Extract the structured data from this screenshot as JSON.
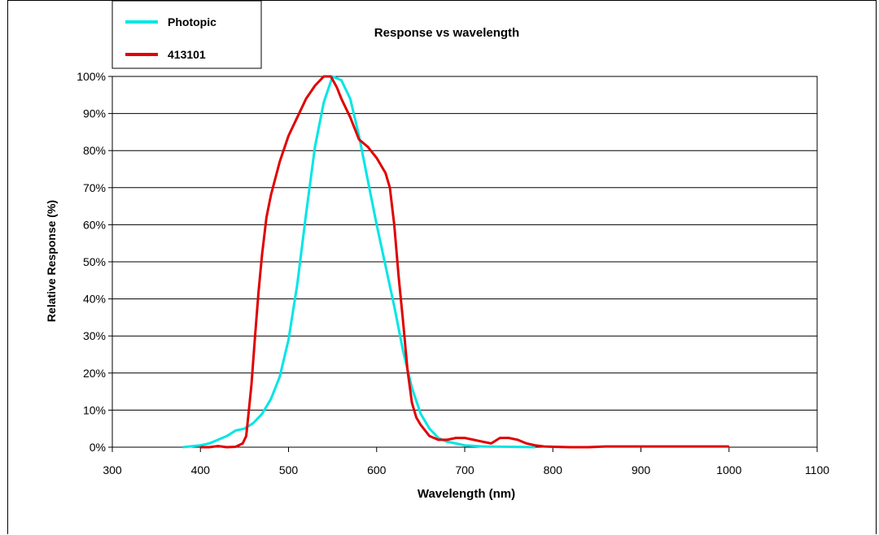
{
  "chart_data": {
    "type": "line",
    "title": "Response vs wavelength",
    "xlabel": "Wavelength (nm)",
    "ylabel": "Relative Response (%)",
    "xlim": [
      300,
      1100
    ],
    "ylim": [
      0,
      100
    ],
    "x_ticks": [
      300,
      400,
      500,
      600,
      700,
      800,
      900,
      1000,
      1100
    ],
    "y_ticks": [
      0,
      10,
      20,
      30,
      40,
      50,
      60,
      70,
      80,
      90,
      100
    ],
    "x_tick_labels": [
      "300",
      "400",
      "500",
      "600",
      "700",
      "800",
      "900",
      "1000",
      "1100"
    ],
    "y_tick_labels": [
      "0%",
      "10%",
      "20%",
      "30%",
      "40%",
      "50%",
      "60%",
      "70%",
      "80%",
      "90%",
      "100%"
    ],
    "grid": "horizontal",
    "legend_position": "top-left",
    "series": [
      {
        "name": "Photopic",
        "color": "#00e5e5",
        "points": [
          [
            380,
            0
          ],
          [
            400,
            0.5
          ],
          [
            410,
            1
          ],
          [
            420,
            2
          ],
          [
            430,
            3
          ],
          [
            440,
            4.5
          ],
          [
            450,
            5
          ],
          [
            460,
            6.5
          ],
          [
            470,
            9
          ],
          [
            480,
            13
          ],
          [
            490,
            19
          ],
          [
            500,
            29
          ],
          [
            510,
            44
          ],
          [
            520,
            63
          ],
          [
            530,
            81
          ],
          [
            540,
            93
          ],
          [
            550,
            100
          ],
          [
            560,
            99
          ],
          [
            570,
            94
          ],
          [
            580,
            84
          ],
          [
            590,
            72
          ],
          [
            600,
            60
          ],
          [
            610,
            49
          ],
          [
            620,
            38
          ],
          [
            630,
            26
          ],
          [
            640,
            16
          ],
          [
            650,
            9
          ],
          [
            660,
            5
          ],
          [
            670,
            2.5
          ],
          [
            680,
            1.5
          ],
          [
            690,
            1
          ],
          [
            700,
            0.5
          ],
          [
            720,
            0.2
          ],
          [
            750,
            0.1
          ],
          [
            780,
            0
          ]
        ]
      },
      {
        "name": "413101",
        "color": "#e00000",
        "points": [
          [
            400,
            0
          ],
          [
            410,
            0
          ],
          [
            420,
            0.3
          ],
          [
            430,
            0
          ],
          [
            440,
            0.1
          ],
          [
            448,
            1
          ],
          [
            452,
            3
          ],
          [
            455,
            10
          ],
          [
            458,
            17
          ],
          [
            462,
            30
          ],
          [
            466,
            42
          ],
          [
            470,
            52
          ],
          [
            475,
            62
          ],
          [
            480,
            68
          ],
          [
            490,
            77
          ],
          [
            500,
            84
          ],
          [
            510,
            89
          ],
          [
            520,
            94
          ],
          [
            530,
            97.5
          ],
          [
            540,
            100
          ],
          [
            548,
            100
          ],
          [
            555,
            97
          ],
          [
            560,
            94
          ],
          [
            570,
            89
          ],
          [
            580,
            83
          ],
          [
            590,
            81
          ],
          [
            600,
            78
          ],
          [
            610,
            74
          ],
          [
            615,
            70
          ],
          [
            620,
            60
          ],
          [
            625,
            46
          ],
          [
            630,
            34
          ],
          [
            635,
            21
          ],
          [
            640,
            12
          ],
          [
            645,
            8
          ],
          [
            650,
            6
          ],
          [
            660,
            3
          ],
          [
            670,
            2
          ],
          [
            680,
            2
          ],
          [
            690,
            2.5
          ],
          [
            700,
            2.5
          ],
          [
            710,
            2
          ],
          [
            720,
            1.5
          ],
          [
            730,
            1
          ],
          [
            740,
            2.5
          ],
          [
            750,
            2.5
          ],
          [
            760,
            2
          ],
          [
            770,
            1
          ],
          [
            780,
            0.5
          ],
          [
            790,
            0.2
          ],
          [
            800,
            0.1
          ],
          [
            820,
            0
          ],
          [
            840,
            0
          ],
          [
            860,
            0.2
          ],
          [
            900,
            0.2
          ],
          [
            950,
            0.2
          ],
          [
            1000,
            0.2
          ]
        ]
      }
    ]
  }
}
